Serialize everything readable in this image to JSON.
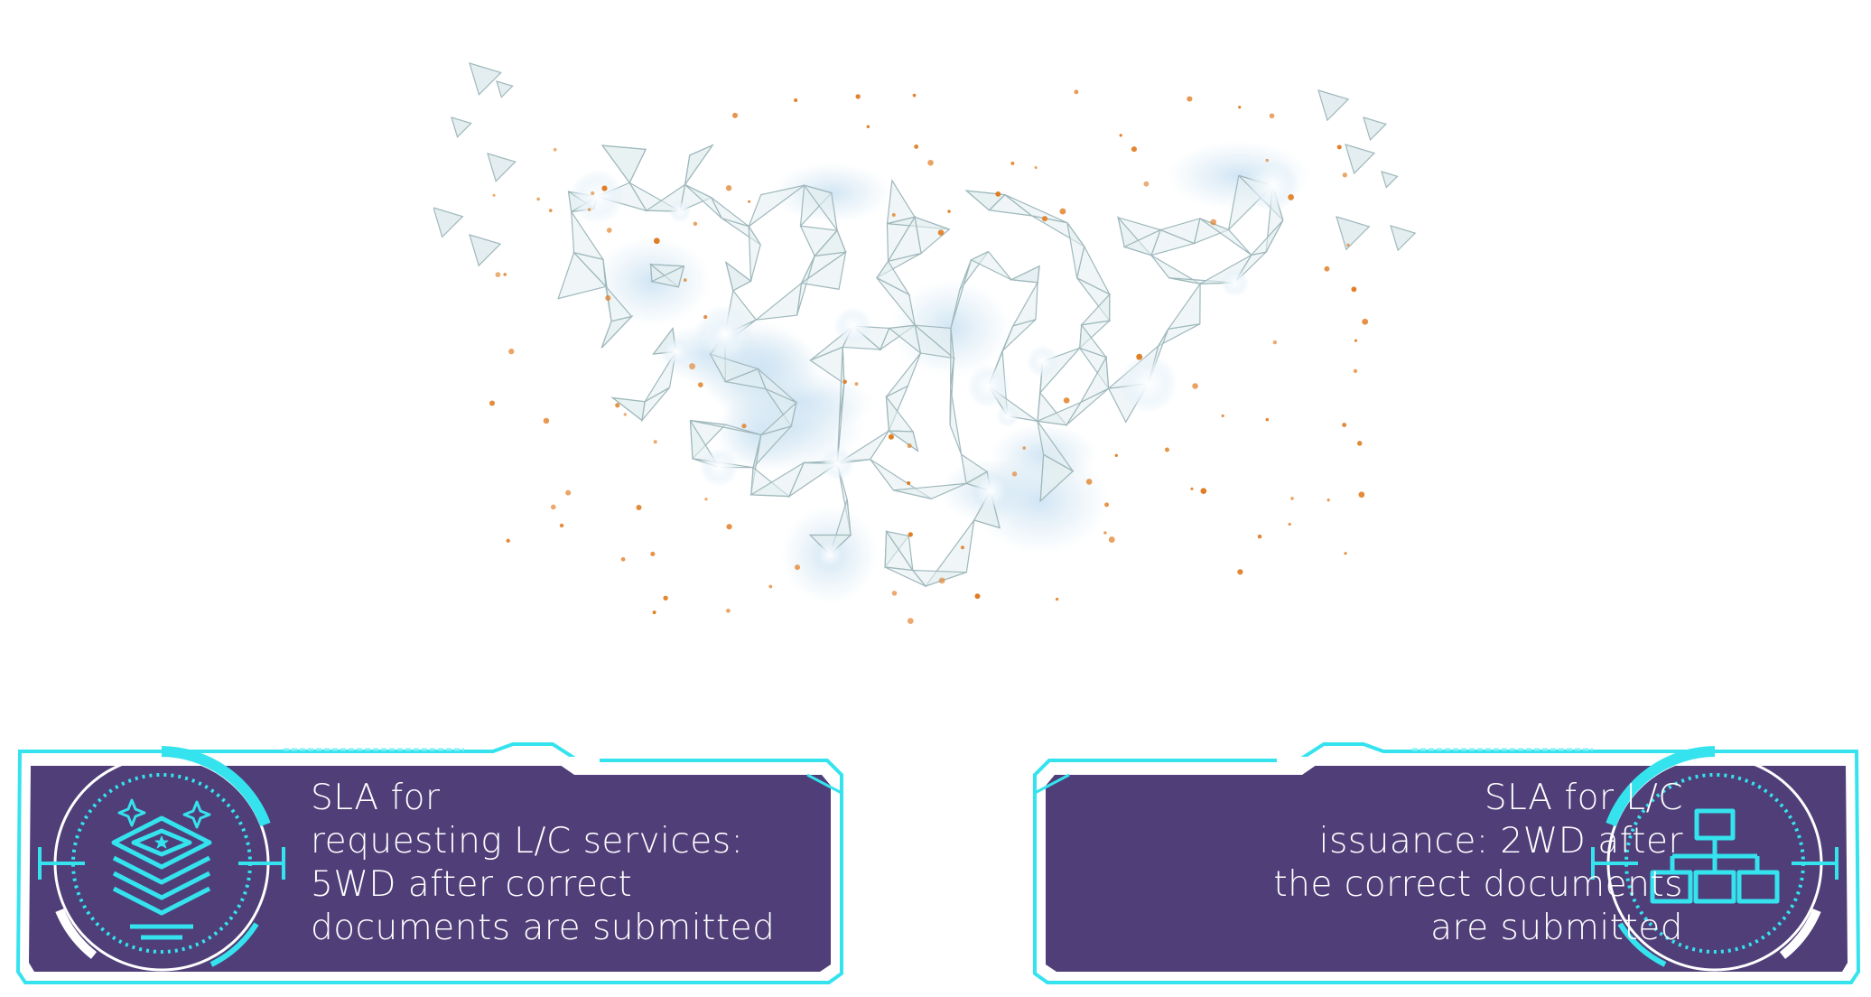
{
  "hero": {
    "image_name": "polygonal-handshake-illustration",
    "palette": {
      "mesh_fill": "#e4eef0",
      "mesh_line": "#9fb8bc",
      "glow": "#ffffff",
      "particles": "#e07a1e"
    }
  },
  "panels": [
    {
      "id": "left",
      "icon": "layers-stack-icon",
      "lines": [
        "SLA for",
        "requesting L/C services:",
        "5WD after correct",
        "documents are submitted"
      ]
    },
    {
      "id": "right",
      "icon": "org-chart-icon",
      "lines": [
        "SLA for L/C",
        "issuance: 2WD after",
        "the correct documents",
        "are submitted"
      ]
    }
  ],
  "colors": {
    "panel_bg": "#4f3e78",
    "frame": "#35e3ee",
    "frame_glow": "#7ff2f7",
    "text": "#ffffff",
    "accent_white": "#ffffff"
  }
}
